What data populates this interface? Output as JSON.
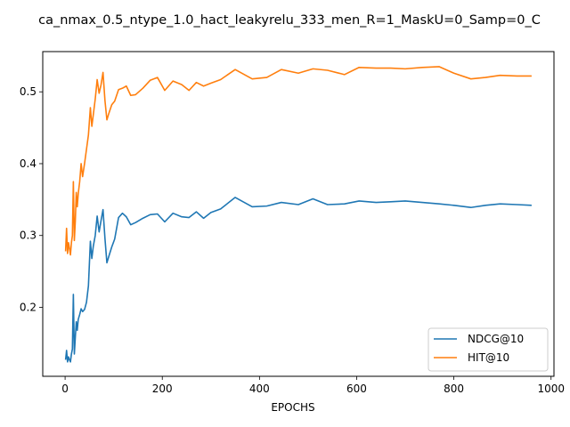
{
  "chart_data": {
    "type": "line",
    "title": "ca_nmax_0.5_ntype_1.0_hact_leakyrelu_333_men_R=1_MaskU=0_Samp=0_C",
    "xlabel": "EPOCHS",
    "ylabel": "",
    "xlim": [
      -46,
      1006
    ],
    "ylim": [
      0.104,
      0.556
    ],
    "xticks": [
      0,
      200,
      400,
      600,
      800,
      1000
    ],
    "yticks": [
      0.2,
      0.3,
      0.4,
      0.5
    ],
    "xtick_labels": [
      "0",
      "200",
      "400",
      "600",
      "800",
      "1000"
    ],
    "ytick_labels": [
      "0.2",
      "0.3",
      "0.4",
      "0.5"
    ],
    "grid": false,
    "legend_position": "lower-right",
    "series": [
      {
        "name": "NDCG@10",
        "color": "#1f77b4",
        "x": [
          1,
          3,
          5,
          7,
          9,
          11,
          13,
          15,
          17,
          19,
          21,
          23,
          25,
          27,
          30,
          33,
          36,
          40,
          44,
          48,
          52,
          55,
          58,
          62,
          66,
          70,
          74,
          78,
          82,
          86,
          90,
          96,
          102,
          110,
          118,
          126,
          135,
          145,
          160,
          175,
          190,
          205,
          222,
          240,
          255,
          270,
          285,
          300,
          320,
          350,
          385,
          415,
          445,
          480,
          510,
          540,
          575,
          605,
          640,
          670,
          700,
          735,
          770,
          800,
          835,
          865,
          895,
          930,
          960
        ],
        "y": [
          0.127,
          0.14,
          0.124,
          0.131,
          0.127,
          0.124,
          0.135,
          0.142,
          0.218,
          0.135,
          0.158,
          0.18,
          0.168,
          0.183,
          0.19,
          0.198,
          0.194,
          0.197,
          0.207,
          0.23,
          0.292,
          0.268,
          0.285,
          0.3,
          0.327,
          0.305,
          0.321,
          0.336,
          0.296,
          0.262,
          0.271,
          0.284,
          0.295,
          0.325,
          0.331,
          0.326,
          0.315,
          0.318,
          0.324,
          0.329,
          0.33,
          0.319,
          0.331,
          0.326,
          0.325,
          0.333,
          0.324,
          0.332,
          0.337,
          0.353,
          0.34,
          0.341,
          0.346,
          0.343,
          0.351,
          0.343,
          0.344,
          0.348,
          0.346,
          0.347,
          0.348,
          0.346,
          0.344,
          0.342,
          0.339,
          0.342,
          0.344,
          0.343,
          0.342
        ]
      },
      {
        "name": "HIT@10",
        "color": "#ff7f0e",
        "x": [
          1,
          3,
          5,
          7,
          9,
          11,
          13,
          15,
          17,
          19,
          21,
          23,
          25,
          27,
          30,
          33,
          36,
          40,
          44,
          48,
          52,
          55,
          58,
          62,
          66,
          70,
          74,
          78,
          82,
          86,
          90,
          96,
          102,
          110,
          118,
          126,
          135,
          145,
          160,
          175,
          190,
          205,
          222,
          240,
          255,
          270,
          285,
          300,
          320,
          350,
          385,
          415,
          445,
          480,
          510,
          540,
          575,
          605,
          640,
          670,
          700,
          735,
          770,
          800,
          835,
          865,
          895,
          930,
          960
        ],
        "y": [
          0.278,
          0.31,
          0.275,
          0.29,
          0.282,
          0.273,
          0.29,
          0.3,
          0.375,
          0.293,
          0.32,
          0.36,
          0.34,
          0.358,
          0.375,
          0.4,
          0.382,
          0.4,
          0.42,
          0.44,
          0.478,
          0.452,
          0.468,
          0.49,
          0.517,
          0.498,
          0.51,
          0.527,
          0.488,
          0.461,
          0.47,
          0.482,
          0.487,
          0.503,
          0.505,
          0.508,
          0.495,
          0.496,
          0.505,
          0.516,
          0.52,
          0.502,
          0.515,
          0.51,
          0.502,
          0.513,
          0.508,
          0.512,
          0.517,
          0.531,
          0.518,
          0.52,
          0.531,
          0.526,
          0.532,
          0.53,
          0.524,
          0.534,
          0.533,
          0.533,
          0.532,
          0.534,
          0.535,
          0.526,
          0.518,
          0.52,
          0.523,
          0.522,
          0.522
        ]
      }
    ]
  }
}
